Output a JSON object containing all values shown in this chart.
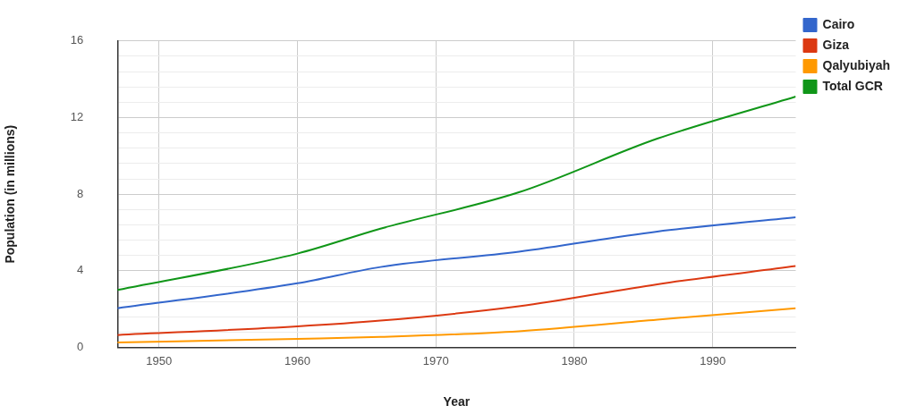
{
  "chart_data": {
    "type": "line",
    "xlabel": "Year",
    "ylabel": "Population (in millions)",
    "x": [
      1947,
      1960,
      1966,
      1976,
      1986,
      1996
    ],
    "series": [
      {
        "name": "Cairo",
        "color": "#3366cc",
        "values": [
          2.05,
          3.35,
          4.2,
          5.0,
          6.05,
          6.8
        ]
      },
      {
        "name": "Giza",
        "color": "#dc3912",
        "values": [
          0.65,
          1.1,
          1.4,
          2.15,
          3.3,
          4.25
        ]
      },
      {
        "name": "Qalyubiyah",
        "color": "#ff9900",
        "values": [
          0.26,
          0.45,
          0.55,
          0.85,
          1.45,
          2.05
        ]
      },
      {
        "name": "Total GCR",
        "color": "#109618",
        "values": [
          3.0,
          4.9,
          6.2,
          8.1,
          10.9,
          13.1
        ]
      }
    ],
    "xlim": [
      1947,
      1996
    ],
    "xticks": [
      1950,
      1960,
      1970,
      1980,
      1990
    ],
    "ylim": [
      0,
      16
    ],
    "yticks": [
      0,
      {
        "value": 0.8,
        "label": null
      },
      {
        "value": 1.6,
        "label": null
      },
      {
        "value": 2.4,
        "label": null
      },
      {
        "value": 3.2,
        "label": null
      },
      4,
      {
        "value": 4.8,
        "label": null
      },
      {
        "value": 5.6,
        "label": null
      },
      {
        "value": 6.4,
        "label": null
      },
      {
        "value": 7.2,
        "label": null
      },
      8,
      {
        "value": 8.8,
        "label": null
      },
      {
        "value": 9.6,
        "label": null
      },
      {
        "value": 10.4,
        "label": null
      },
      {
        "value": 11.2,
        "label": null
      },
      12,
      {
        "value": 12.8,
        "label": null
      },
      {
        "value": 13.6,
        "label": null
      },
      {
        "value": 14.4,
        "label": null
      },
      {
        "value": 15.2,
        "label": null
      },
      16
    ],
    "grid": true,
    "legend": "top right",
    "marker": "none",
    "line_style": "solid"
  }
}
